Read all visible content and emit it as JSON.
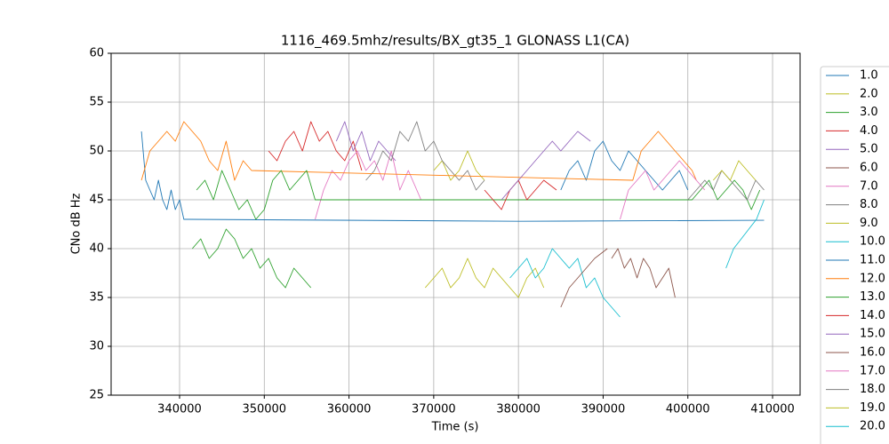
{
  "chart_data": {
    "type": "line",
    "title": "1116_469.5mhz/results/BX_gt35_1 GLONASS L1(CA)",
    "x_label": "Time (s)",
    "y_label": "CNo dB Hz",
    "xlim": [
      331920,
      413250
    ],
    "ylim": [
      25,
      60
    ],
    "xticks": [
      340000,
      350000,
      360000,
      370000,
      380000,
      390000,
      400000,
      410000
    ],
    "yticks": [
      25,
      30,
      35,
      40,
      45,
      50,
      55,
      60
    ],
    "grid": true,
    "legend": "outside right",
    "series": [
      {
        "name": "1.0",
        "color": "#1f77b4",
        "x": [
          335500,
          336000,
          336500,
          337000,
          337500,
          338000,
          338500,
          339000,
          339500,
          340000,
          340500,
          341000,
          380000,
          409000
        ],
        "values": [
          52,
          47,
          46,
          45,
          47,
          45,
          44,
          46,
          44,
          45,
          43,
          43,
          42.8,
          42.9
        ]
      },
      {
        "name": "2.0",
        "color": "#bcbd22",
        "x": [
          370000,
          371000,
          372000,
          373000,
          374000,
          375000,
          376000
        ],
        "values": [
          48,
          49,
          47,
          48,
          50,
          48,
          47
        ]
      },
      {
        "name": "3.0",
        "color": "#2ca02c",
        "x": [
          341500,
          342500,
          343500,
          344500,
          345500,
          346500,
          347500,
          348500,
          349500,
          350500,
          351500,
          352500,
          353500,
          354500,
          355500
        ],
        "values": [
          40,
          41,
          39,
          40,
          42,
          41,
          39,
          40,
          38,
          39,
          37,
          36,
          38,
          37,
          36
        ]
      },
      {
        "name": "4.0",
        "color": "#d62728",
        "x": [
          350500,
          351500,
          352500,
          353500,
          354500,
          355500,
          356500,
          357500,
          358500,
          359500,
          360500,
          361500
        ],
        "values": [
          50,
          49,
          51,
          52,
          50,
          53,
          51,
          52,
          50,
          49,
          51,
          48
        ]
      },
      {
        "name": "5.0",
        "color": "#9467bd",
        "x": [
          358500,
          359500,
          360500,
          361500,
          362500,
          363500,
          364500,
          365500
        ],
        "values": [
          51,
          53,
          50,
          52,
          49,
          51,
          50,
          49
        ]
      },
      {
        "name": "6.0",
        "color": "#8c564b",
        "x": [
          391000,
          391750,
          392500,
          393250,
          394000,
          394750,
          395500,
          396250,
          397000,
          397750,
          398500
        ],
        "values": [
          39,
          40,
          38,
          39,
          37,
          39,
          38,
          36,
          37,
          38,
          35
        ]
      },
      {
        "name": "7.0",
        "color": "#e377c2",
        "x": [
          356000,
          357000,
          358000,
          359000,
          360000,
          361000,
          362000,
          363000,
          364000,
          365000,
          366000,
          367000,
          368500
        ],
        "values": [
          43,
          46,
          48,
          47,
          49,
          50,
          48,
          49,
          47,
          50,
          46,
          48,
          45
        ]
      },
      {
        "name": "8.0",
        "color": "#7f7f7f",
        "x": [
          362000,
          363000,
          364000,
          365000,
          366000,
          367000,
          368000,
          369000,
          370000,
          371000,
          372000,
          373000,
          374000,
          375000,
          376000
        ],
        "values": [
          47,
          48,
          50,
          49,
          52,
          51,
          53,
          50,
          51,
          49,
          48,
          47,
          48,
          46,
          47
        ]
      },
      {
        "name": "9.0",
        "color": "#bcbd22",
        "x": [
          369000,
          370000,
          371000,
          372000,
          373000,
          374000,
          375000,
          376000,
          377000,
          378000,
          379000,
          380000,
          381000,
          382000,
          383000
        ],
        "values": [
          36,
          37,
          38,
          36,
          37,
          39,
          37,
          36,
          38,
          37,
          36,
          35,
          37,
          38,
          36
        ]
      },
      {
        "name": "10.0",
        "color": "#17becf",
        "x": [
          379000,
          380000,
          381000,
          382000,
          383000,
          384000,
          385000,
          386000,
          387000,
          388000,
          389000,
          390000,
          391000,
          392000
        ],
        "values": [
          37,
          38,
          39,
          37,
          38,
          40,
          39,
          38,
          39,
          36,
          37,
          35,
          34,
          33
        ]
      },
      {
        "name": "11.0",
        "color": "#1f77b4",
        "x": [
          385000,
          386000,
          387000,
          388000,
          389000,
          390000,
          391000,
          392000,
          393000,
          394000,
          395000,
          396000,
          397000,
          398000,
          399000,
          400000
        ],
        "values": [
          46,
          48,
          49,
          47,
          50,
          51,
          49,
          48,
          50,
          49,
          48,
          47,
          46,
          47,
          48,
          46
        ]
      },
      {
        "name": "12.0",
        "color": "#ff7f0e",
        "x": [
          335500,
          336500,
          337500,
          338500,
          339500,
          340500,
          341500,
          342500,
          343500,
          344500,
          345500,
          346500,
          347500,
          348500,
          393500,
          394500,
          395500,
          396500,
          397500,
          398500,
          399500,
          400500,
          401000
        ],
        "values": [
          47,
          50,
          51,
          52,
          51,
          53,
          52,
          51,
          49,
          48,
          51,
          47,
          49,
          48,
          47,
          50,
          51,
          52,
          51,
          50,
          49,
          48,
          47
        ]
      },
      {
        "name": "13.0",
        "color": "#2ca02c",
        "x": [
          342000,
          343000,
          344000,
          345000,
          346000,
          347000,
          348000,
          349000,
          350000,
          351000,
          352000,
          353000,
          354000,
          355000,
          356000,
          400500,
          401500,
          402500,
          403500,
          404500,
          405500,
          406500,
          407500,
          408500
        ],
        "values": [
          46,
          47,
          45,
          48,
          46,
          44,
          45,
          43,
          44,
          47,
          48,
          46,
          47,
          48,
          45,
          45,
          46,
          47,
          45,
          46,
          47,
          46,
          44,
          46
        ]
      },
      {
        "name": "14.0",
        "color": "#d62728",
        "x": [
          376000,
          377000,
          378000,
          379000,
          380000,
          381000,
          382000,
          383000,
          384500
        ],
        "values": [
          46,
          45,
          44,
          46,
          47,
          45,
          46,
          47,
          46
        ]
      },
      {
        "name": "15.0",
        "color": "#9467bd",
        "x": [
          378000,
          379000,
          380000,
          381000,
          382000,
          383000,
          384000,
          385000,
          386000,
          387000,
          388500
        ],
        "values": [
          45,
          46,
          47,
          48,
          49,
          50,
          51,
          50,
          51,
          52,
          51
        ]
      },
      {
        "name": "16.0",
        "color": "#8c564b",
        "x": [
          385000,
          386000,
          387000,
          388000,
          389000,
          390500
        ],
        "values": [
          34,
          36,
          37,
          38,
          39,
          40
        ]
      },
      {
        "name": "17.0",
        "color": "#e377c2",
        "x": [
          392000,
          393000,
          394000,
          395000,
          396000,
          397000,
          398000,
          399000,
          400000,
          401000,
          402000
        ],
        "values": [
          43,
          46,
          47,
          48,
          46,
          47,
          48,
          49,
          48,
          47,
          46
        ]
      },
      {
        "name": "18.0",
        "color": "#7f7f7f",
        "x": [
          400000,
          401000,
          402000,
          403000,
          404000,
          405000,
          406000,
          407000,
          408000,
          409000
        ],
        "values": [
          45,
          46,
          47,
          46,
          48,
          47,
          46,
          45,
          47,
          46
        ]
      },
      {
        "name": "19.0",
        "color": "#bcbd22",
        "x": [
          403000,
          404000,
          405000,
          406000,
          407000,
          408000
        ],
        "values": [
          47,
          48,
          47,
          49,
          48,
          47
        ]
      },
      {
        "name": "20.0",
        "color": "#17becf",
        "x": [
          404500,
          405400,
          406300,
          407200,
          408100,
          409000
        ],
        "values": [
          38,
          40,
          41,
          42,
          43,
          45
        ]
      }
    ]
  }
}
